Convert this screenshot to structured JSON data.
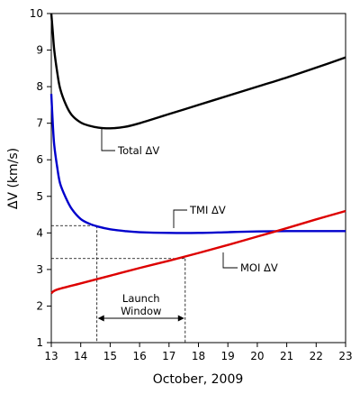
{
  "chart_data": {
    "type": "line",
    "xlabel": "October, 2009",
    "ylabel": "ΔV (km/s)",
    "xlim": [
      13,
      23
    ],
    "ylim": [
      1,
      10
    ],
    "xticks": [
      13,
      14,
      15,
      16,
      17,
      18,
      19,
      20,
      21,
      22,
      23
    ],
    "yticks": [
      1,
      2,
      3,
      4,
      5,
      6,
      7,
      8,
      9,
      10
    ],
    "grid": false,
    "series": [
      {
        "name": "Total ΔV",
        "color": "#000000",
        "x": [
          13.0,
          13.05,
          13.1,
          13.2,
          13.3,
          13.5,
          13.7,
          14.0,
          14.3,
          14.6,
          15.0,
          15.5,
          16.0,
          17.0,
          18.0,
          19.0,
          20.0,
          21.0,
          22.0,
          23.0
        ],
        "y": [
          10.0,
          9.5,
          9.0,
          8.4,
          7.95,
          7.5,
          7.22,
          7.02,
          6.93,
          6.88,
          6.86,
          6.9,
          7.0,
          7.25,
          7.5,
          7.75,
          8.0,
          8.25,
          8.52,
          8.8
        ]
      },
      {
        "name": "TMI ΔV",
        "color": "#0000cc",
        "x": [
          13.0,
          13.05,
          13.1,
          13.2,
          13.3,
          13.5,
          13.7,
          14.0,
          14.3,
          14.6,
          15.0,
          15.5,
          16.0,
          17.0,
          18.0,
          19.0,
          20.0,
          21.0,
          22.0,
          23.0
        ],
        "y": [
          7.8,
          7.0,
          6.4,
          5.8,
          5.35,
          4.95,
          4.65,
          4.38,
          4.25,
          4.17,
          4.1,
          4.05,
          4.02,
          4.0,
          4.0,
          4.02,
          4.04,
          4.05,
          4.05,
          4.05
        ]
      },
      {
        "name": "MOI ΔV",
        "color": "#dd0000",
        "x": [
          13.0,
          13.2,
          14.0,
          15.0,
          16.0,
          17.0,
          18.0,
          19.0,
          20.0,
          21.0,
          22.0,
          23.0
        ],
        "y": [
          2.35,
          2.45,
          2.62,
          2.83,
          3.04,
          3.24,
          3.45,
          3.67,
          3.9,
          4.13,
          4.37,
          4.6
        ]
      }
    ],
    "annotations": [
      {
        "text": "Total ΔV",
        "series": "Total ΔV"
      },
      {
        "text": "TMI ΔV",
        "series": "TMI ΔV"
      },
      {
        "text": "MOI ΔV",
        "series": "MOI ΔV"
      },
      {
        "text_lines": [
          "Launch",
          "Window"
        ],
        "x_range": [
          14.55,
          17.55
        ]
      }
    ],
    "reference_lines": [
      {
        "x": 14.55,
        "y": 4.2
      },
      {
        "x": 17.55,
        "y": 3.3
      }
    ]
  }
}
